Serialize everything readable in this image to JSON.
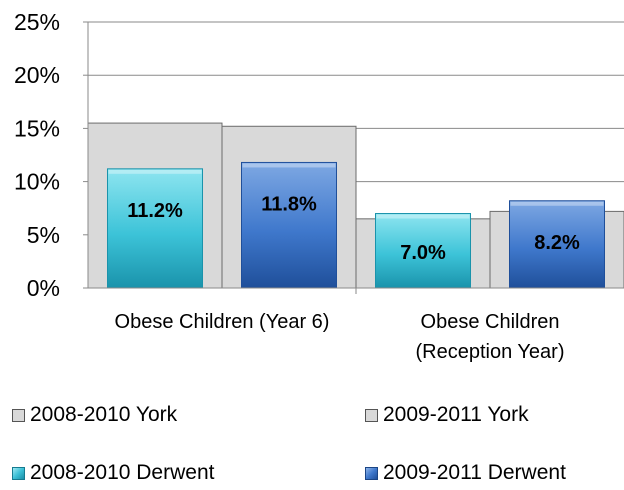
{
  "chart_data": {
    "type": "bar",
    "categories": [
      "Obese Children (Year 6)",
      "Obese Children (Reception Year)"
    ],
    "category_lines": [
      [
        "Obese Children (Year 6)"
      ],
      [
        "Obese Children",
        "(Reception Year)"
      ]
    ],
    "ylim": [
      0,
      25
    ],
    "y_ticks": [
      "0%",
      "5%",
      "10%",
      "15%",
      "20%",
      "25%"
    ],
    "grid": true,
    "legend_position": "bottom",
    "background_series": [
      {
        "name": "2008-2010 York",
        "values": [
          15.5,
          6.5
        ]
      },
      {
        "name": "2009-2011 York",
        "values": [
          15.2,
          7.2
        ]
      }
    ],
    "series": [
      {
        "name": "2008-2010 Derwent",
        "values": [
          11.2,
          7.0
        ],
        "labels": [
          "11.2%",
          "7.0%"
        ]
      },
      {
        "name": "2009-2011 Derwent",
        "values": [
          11.8,
          8.2
        ],
        "labels": [
          "11.8%",
          "8.2%"
        ]
      }
    ],
    "colors": {
      "york": "#d9d9d9",
      "york_border": "#6b6b6b",
      "derwent_2008_top": "#8ee5f0",
      "derwent_2008_bottom": "#1a93ab",
      "derwent_2009_top": "#7ea8e3",
      "derwent_2009_bottom": "#1f4f9a",
      "gridline": "#8a8a8a"
    }
  },
  "legend": {
    "items": [
      {
        "label": "2008-2010 York"
      },
      {
        "label": "2009-2011 York"
      },
      {
        "label": "2008-2010 Derwent"
      },
      {
        "label": "2009-2011 Derwent"
      }
    ]
  }
}
